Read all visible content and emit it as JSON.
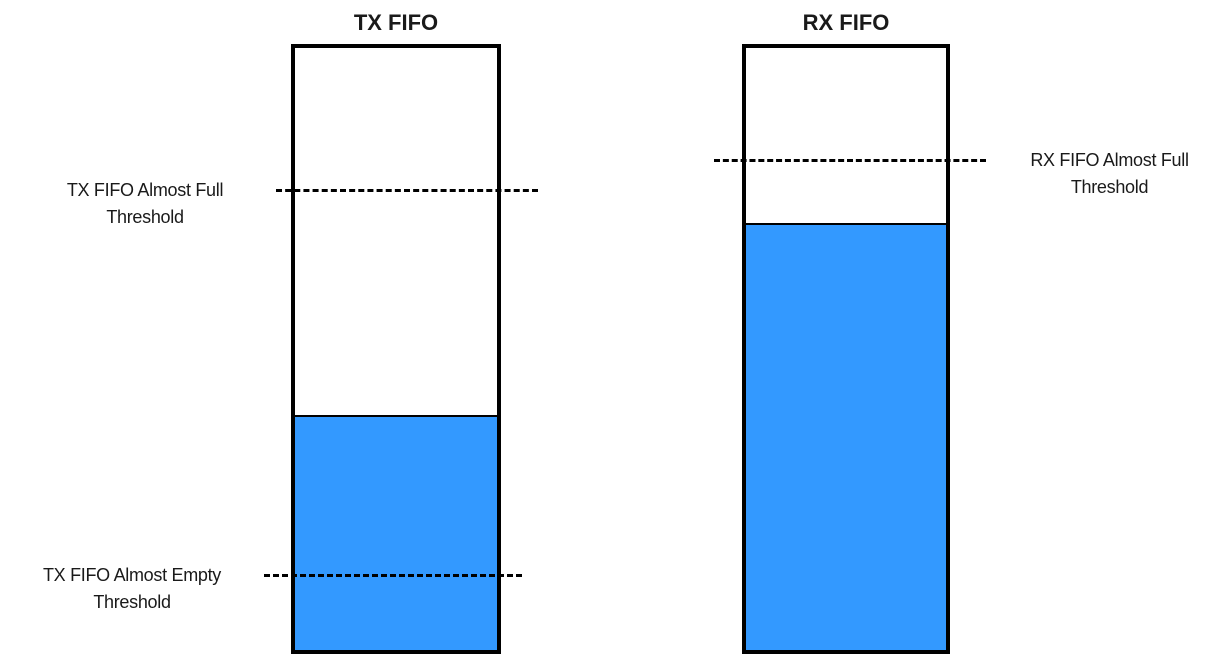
{
  "colors": {
    "fill": "#3399ff",
    "outline": "#000000",
    "background": "#ffffff"
  },
  "tx_fifo": {
    "title": "TX FIFO",
    "fill_level": 0.39,
    "almost_full_threshold_level": 0.76,
    "almost_empty_threshold_level": 0.13,
    "almost_full_label": [
      "TX FIFO Almost Full",
      "Threshold"
    ],
    "almost_empty_label": [
      "TX FIFO Almost Empty",
      "Threshold"
    ]
  },
  "rx_fifo": {
    "title": "RX FIFO",
    "fill_level": 0.71,
    "almost_full_threshold_level": 0.81,
    "almost_full_label": [
      "RX FIFO Almost Full",
      "Threshold"
    ]
  }
}
